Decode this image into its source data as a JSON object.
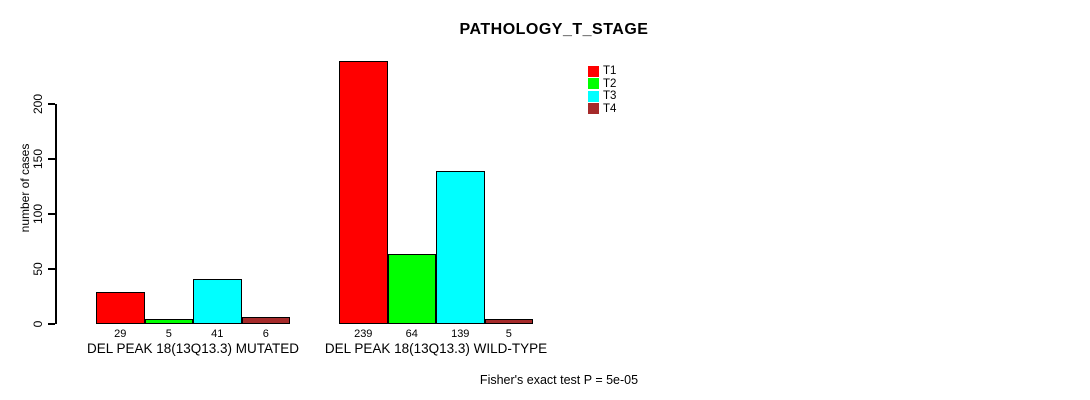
{
  "title": "PATHOLOGY_T_STAGE",
  "footer": "Fisher's exact test P = 5e-05",
  "chart_data": {
    "type": "bar",
    "title": "PATHOLOGY_T_STAGE",
    "xlabel": "",
    "ylabel": "number of cases",
    "ylim": [
      0,
      240
    ],
    "yticks": [
      0,
      50,
      100,
      150,
      200
    ],
    "grid": false,
    "legend_position": "top-right",
    "categories": [
      "DEL PEAK 18(13Q13.3) MUTATED",
      "DEL PEAK 18(13Q13.3) WILD-TYPE"
    ],
    "series": [
      {
        "name": "T1",
        "color": "#FF0000",
        "values": [
          29,
          239
        ]
      },
      {
        "name": "T2",
        "color": "#00FF00",
        "values": [
          5,
          64
        ]
      },
      {
        "name": "T3",
        "color": "#00FFFF",
        "values": [
          41,
          139
        ]
      },
      {
        "name": "T4",
        "color": "#A52A2A",
        "values": [
          6,
          5
        ]
      }
    ],
    "bar_value_labels": [
      [
        "29",
        "5",
        "41",
        "6"
      ],
      [
        "239",
        "64",
        "139",
        "5"
      ]
    ],
    "annotation": "Fisher's exact test P = 5e-05"
  }
}
